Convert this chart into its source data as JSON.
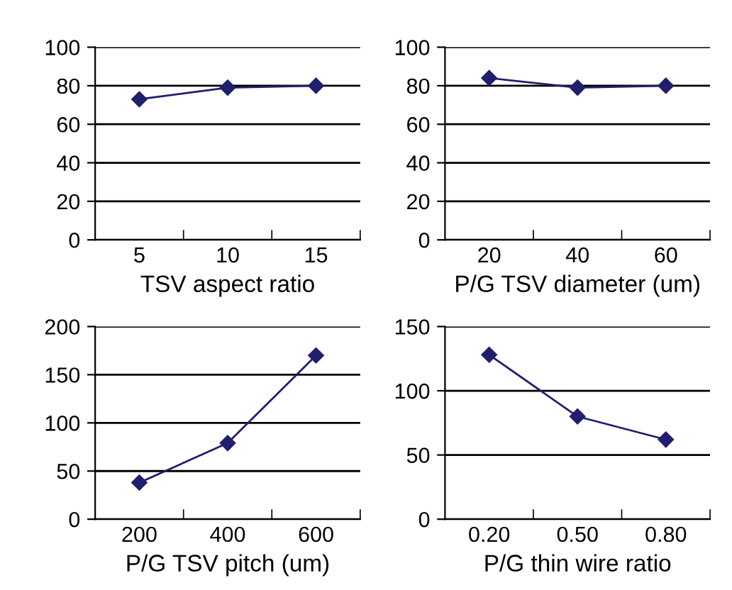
{
  "chart_data": [
    {
      "type": "line",
      "xlabel": "TSV aspect ratio",
      "categories": [
        "5",
        "10",
        "15"
      ],
      "series": [
        {
          "color": "#1f1f6e",
          "values": [
            73,
            79,
            80
          ]
        }
      ],
      "ylim": [
        0,
        100
      ],
      "yticks": [
        0,
        20,
        40,
        60,
        80,
        100
      ],
      "grid": "y",
      "marker": "diamond",
      "line_style": "solid"
    },
    {
      "type": "line",
      "xlabel": "P/G TSV diameter (um)",
      "categories": [
        "20",
        "40",
        "60"
      ],
      "series": [
        {
          "color": "#1f1f6e",
          "values": [
            84,
            79,
            80
          ]
        }
      ],
      "ylim": [
        0,
        100
      ],
      "yticks": [
        0,
        20,
        40,
        60,
        80,
        100
      ],
      "grid": "y",
      "marker": "diamond",
      "line_style": "solid"
    },
    {
      "type": "line",
      "xlabel": "P/G TSV pitch (um)",
      "categories": [
        "200",
        "400",
        "600"
      ],
      "series": [
        {
          "color": "#1f1f6e",
          "values": [
            38,
            79,
            170
          ]
        }
      ],
      "ylim": [
        0,
        200
      ],
      "yticks": [
        0,
        50,
        100,
        150,
        200
      ],
      "grid": "y",
      "marker": "diamond",
      "line_style": "solid"
    },
    {
      "type": "line",
      "xlabel": "P/G thin wire ratio",
      "categories": [
        "0.20",
        "0.50",
        "0.80"
      ],
      "series": [
        {
          "color": "#1f1f6e",
          "values": [
            128,
            80,
            62
          ]
        }
      ],
      "ylim": [
        0,
        150
      ],
      "yticks": [
        0,
        50,
        100,
        150
      ],
      "grid": "y",
      "marker": "diamond",
      "line_style": "solid"
    }
  ]
}
